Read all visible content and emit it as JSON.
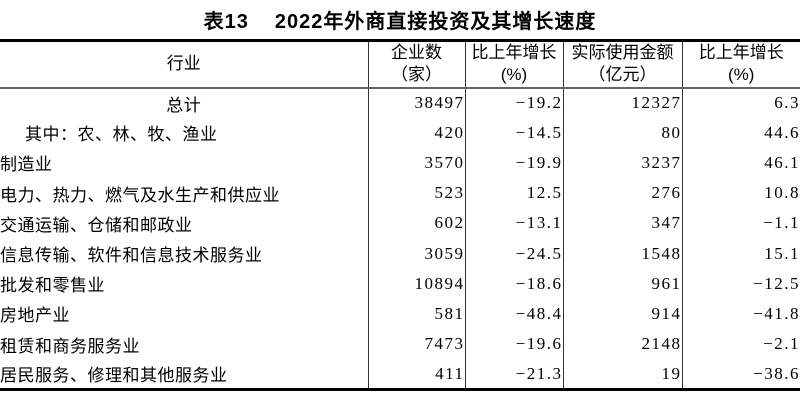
{
  "title": {
    "label": "表13",
    "text": "2022年外商直接投资及其增长速度"
  },
  "table": {
    "columns": [
      {
        "key": "industry",
        "line1": "行业",
        "line2": ""
      },
      {
        "key": "enterprises",
        "line1": "企业数",
        "line2": "（家）"
      },
      {
        "key": "enterprises_growth",
        "line1": "比上年增长",
        "line2": "(%)"
      },
      {
        "key": "amount",
        "line1": "实际使用金额",
        "line2": "（亿元）"
      },
      {
        "key": "amount_growth",
        "line1": "比上年增长",
        "line2": "(%)"
      }
    ],
    "rows": [
      {
        "style": "total",
        "industry": "总计",
        "enterprises": "38497",
        "enterprises_growth": "-19.2",
        "amount": "12327",
        "amount_growth": "6.3"
      },
      {
        "style": "prefix",
        "industry": "其中：农、林、牧、渔业",
        "enterprises": "420",
        "enterprises_growth": "-14.5",
        "amount": "80",
        "amount_growth": "44.6"
      },
      {
        "style": "item",
        "industry": "制造业",
        "enterprises": "3570",
        "enterprises_growth": "-19.9",
        "amount": "3237",
        "amount_growth": "46.1"
      },
      {
        "style": "item",
        "industry": "电力、热力、燃气及水生产和供应业",
        "enterprises": "523",
        "enterprises_growth": "12.5",
        "amount": "276",
        "amount_growth": "10.8"
      },
      {
        "style": "item",
        "industry": "交通运输、仓储和邮政业",
        "enterprises": "602",
        "enterprises_growth": "-13.1",
        "amount": "347",
        "amount_growth": "-1.1"
      },
      {
        "style": "item",
        "industry": "信息传输、软件和信息技术服务业",
        "enterprises": "3059",
        "enterprises_growth": "-24.5",
        "amount": "1548",
        "amount_growth": "15.1"
      },
      {
        "style": "item",
        "industry": "批发和零售业",
        "enterprises": "10894",
        "enterprises_growth": "-18.6",
        "amount": "961",
        "amount_growth": "-12.5"
      },
      {
        "style": "item",
        "industry": "房地产业",
        "enterprises": "581",
        "enterprises_growth": "-48.4",
        "amount": "914",
        "amount_growth": "-41.8"
      },
      {
        "style": "item",
        "industry": "租赁和商务服务业",
        "enterprises": "7473",
        "enterprises_growth": "-19.6",
        "amount": "2148",
        "amount_growth": "-2.1"
      },
      {
        "style": "item",
        "industry": "居民服务、修理和其他服务业",
        "enterprises": "411",
        "enterprises_growth": "-21.3",
        "amount": "19",
        "amount_growth": "-38.6"
      }
    ]
  }
}
